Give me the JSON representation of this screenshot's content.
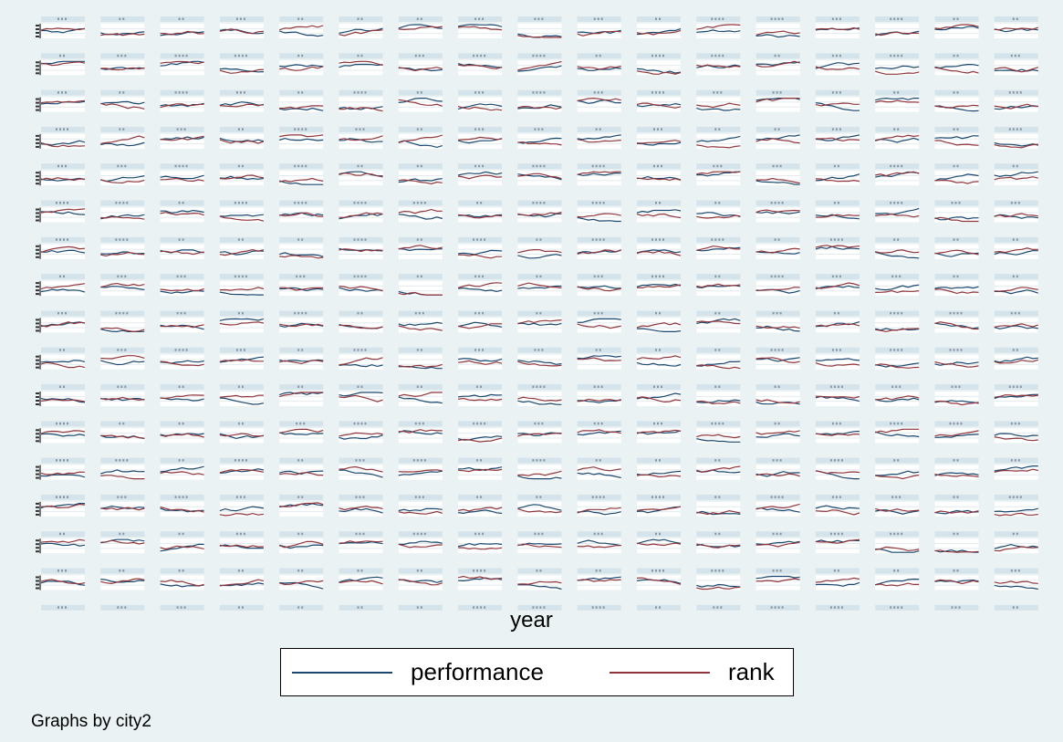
{
  "chart_data": {
    "type": "line",
    "title": "",
    "xlabel": "year",
    "ylabel": "",
    "layout": "small multiples (by city2)",
    "panel_count": 299,
    "panel_titles_legible": false,
    "panels_per_row": 17,
    "legend_position": "bottom",
    "grid": true,
    "series": [
      {
        "name": "performance",
        "color": "#1a476f"
      },
      {
        "name": "rank",
        "color": "#90353b"
      }
    ]
  },
  "note": "Graphs by city2"
}
